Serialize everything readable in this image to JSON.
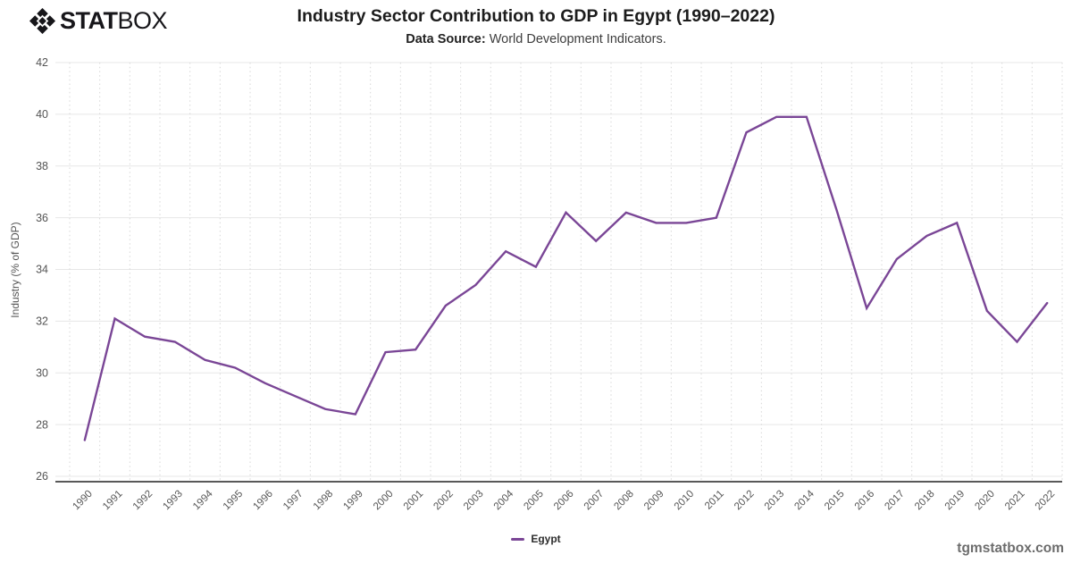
{
  "logo": {
    "stat": "STAT",
    "box": "BOX"
  },
  "header": {
    "title": "Industry Sector Contribution to GDP in Egypt (1990–2022)",
    "subtitle_label": "Data Source:",
    "subtitle_text": " World Development Indicators."
  },
  "legend": {
    "label": "Egypt"
  },
  "footer": {
    "watermark": "tgmstatbox.com"
  },
  "colors": {
    "line": "#7a4696",
    "grid_horizontal": "#e7e7e7",
    "grid_vertical": "#d7d7d7",
    "axis": "#222222",
    "tick_text": "#555555"
  },
  "chart_data": {
    "type": "line",
    "title": "Industry Sector Contribution to GDP in Egypt (1990–2022)",
    "subtitle": "Data Source: World Development Indicators.",
    "x": [
      1990,
      1991,
      1992,
      1993,
      1994,
      1995,
      1996,
      1997,
      1998,
      1999,
      2000,
      2001,
      2002,
      2003,
      2004,
      2005,
      2006,
      2007,
      2008,
      2009,
      2010,
      2011,
      2012,
      2013,
      2014,
      2015,
      2016,
      2017,
      2018,
      2019,
      2020,
      2021,
      2022
    ],
    "series": [
      {
        "name": "Egypt",
        "color": "#7a4696",
        "values": [
          27.4,
          32.1,
          31.4,
          31.2,
          30.5,
          30.2,
          29.6,
          29.1,
          28.6,
          28.4,
          30.8,
          30.9,
          32.6,
          33.4,
          34.7,
          34.1,
          36.2,
          35.1,
          36.2,
          35.8,
          35.8,
          36.0,
          39.3,
          39.9,
          39.9,
          36.3,
          32.5,
          34.4,
          35.3,
          35.8,
          32.4,
          31.2,
          32.7
        ]
      }
    ],
    "xlabel": "",
    "ylabel": "Industry (% of GDP)",
    "ylim": [
      26,
      42
    ],
    "yticks": [
      26,
      28,
      30,
      32,
      34,
      36,
      38,
      40,
      42
    ],
    "grid": {
      "horizontal": "solid",
      "vertical": "dotted"
    },
    "legend_position": "bottom"
  }
}
